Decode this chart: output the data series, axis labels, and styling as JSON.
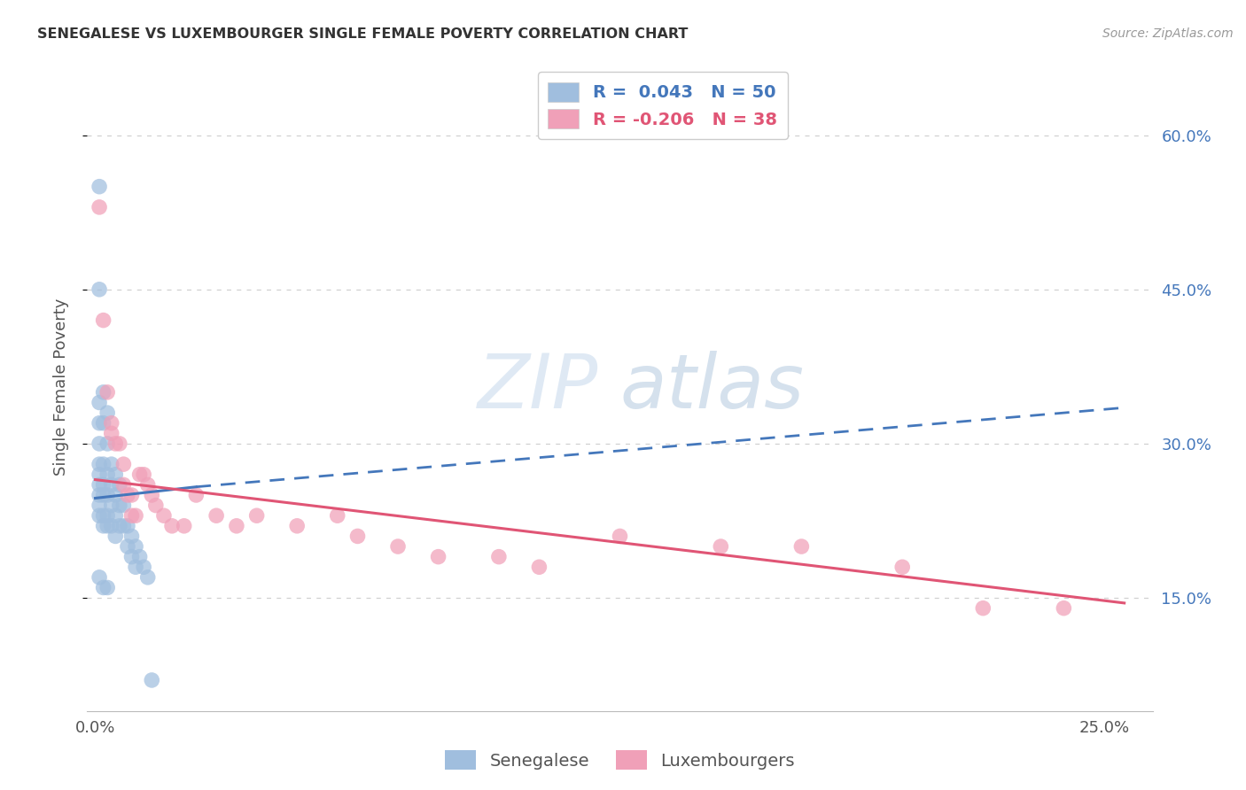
{
  "title": "SENEGALESE VS LUXEMBOURGER SINGLE FEMALE POVERTY CORRELATION CHART",
  "source": "Source: ZipAtlas.com",
  "ylabel": "Single Female Poverty",
  "xlim": [
    -0.002,
    0.262
  ],
  "ylim": [
    0.04,
    0.67
  ],
  "background_color": "#ffffff",
  "grid_color": "#d0d0d0",
  "blue_fill": "#a0bede",
  "pink_fill": "#f0a0b8",
  "blue_line": "#4477bb",
  "pink_line": "#e05575",
  "y_ticks": [
    0.15,
    0.3,
    0.45,
    0.6
  ],
  "y_tick_labels": [
    "15.0%",
    "30.0%",
    "45.0%",
    "60.0%"
  ],
  "x_ticks": [
    0.0,
    0.05,
    0.1,
    0.15,
    0.2,
    0.25
  ],
  "x_tick_labels": [
    "0.0%",
    "",
    "",
    "",
    "",
    "25.0%"
  ],
  "legend_entries": [
    {
      "label": "R =  0.043   N = 50",
      "color": "#4477bb"
    },
    {
      "label": "R = -0.206   N = 38",
      "color": "#e05575"
    }
  ],
  "bottom_legend": [
    "Senegalese",
    "Luxembourgers"
  ],
  "blue_trend_x0": 0.0,
  "blue_trend_y0": 0.247,
  "blue_trend_x1_solid": 0.025,
  "blue_trend_y1_solid": 0.258,
  "blue_trend_x1_dash": 0.255,
  "blue_trend_y1_dash": 0.335,
  "pink_trend_x0": 0.0,
  "pink_trend_y0": 0.265,
  "pink_trend_x1": 0.255,
  "pink_trend_y1": 0.145,
  "sen_x": [
    0.001,
    0.001,
    0.001,
    0.001,
    0.001,
    0.001,
    0.001,
    0.001,
    0.001,
    0.001,
    0.001,
    0.002,
    0.002,
    0.002,
    0.002,
    0.002,
    0.002,
    0.002,
    0.003,
    0.003,
    0.003,
    0.003,
    0.003,
    0.003,
    0.004,
    0.004,
    0.004,
    0.004,
    0.005,
    0.005,
    0.005,
    0.005,
    0.006,
    0.006,
    0.006,
    0.007,
    0.007,
    0.008,
    0.008,
    0.009,
    0.009,
    0.01,
    0.01,
    0.011,
    0.012,
    0.013,
    0.001,
    0.002,
    0.003,
    0.014
  ],
  "sen_y": [
    0.55,
    0.45,
    0.34,
    0.32,
    0.3,
    0.28,
    0.27,
    0.26,
    0.25,
    0.24,
    0.23,
    0.35,
    0.32,
    0.28,
    0.26,
    0.25,
    0.23,
    0.22,
    0.33,
    0.3,
    0.27,
    0.25,
    0.23,
    0.22,
    0.28,
    0.26,
    0.24,
    0.22,
    0.27,
    0.25,
    0.23,
    0.21,
    0.26,
    0.24,
    0.22,
    0.24,
    0.22,
    0.22,
    0.2,
    0.21,
    0.19,
    0.2,
    0.18,
    0.19,
    0.18,
    0.17,
    0.17,
    0.16,
    0.16,
    0.07
  ],
  "lux_x": [
    0.001,
    0.002,
    0.003,
    0.004,
    0.004,
    0.005,
    0.006,
    0.007,
    0.007,
    0.008,
    0.009,
    0.009,
    0.01,
    0.011,
    0.012,
    0.013,
    0.014,
    0.015,
    0.017,
    0.019,
    0.022,
    0.025,
    0.03,
    0.035,
    0.04,
    0.05,
    0.06,
    0.065,
    0.075,
    0.085,
    0.1,
    0.11,
    0.13,
    0.155,
    0.175,
    0.2,
    0.22,
    0.24
  ],
  "lux_y": [
    0.53,
    0.42,
    0.35,
    0.32,
    0.31,
    0.3,
    0.3,
    0.28,
    0.26,
    0.25,
    0.25,
    0.23,
    0.23,
    0.27,
    0.27,
    0.26,
    0.25,
    0.24,
    0.23,
    0.22,
    0.22,
    0.25,
    0.23,
    0.22,
    0.23,
    0.22,
    0.23,
    0.21,
    0.2,
    0.19,
    0.19,
    0.18,
    0.21,
    0.2,
    0.2,
    0.18,
    0.14,
    0.14
  ]
}
